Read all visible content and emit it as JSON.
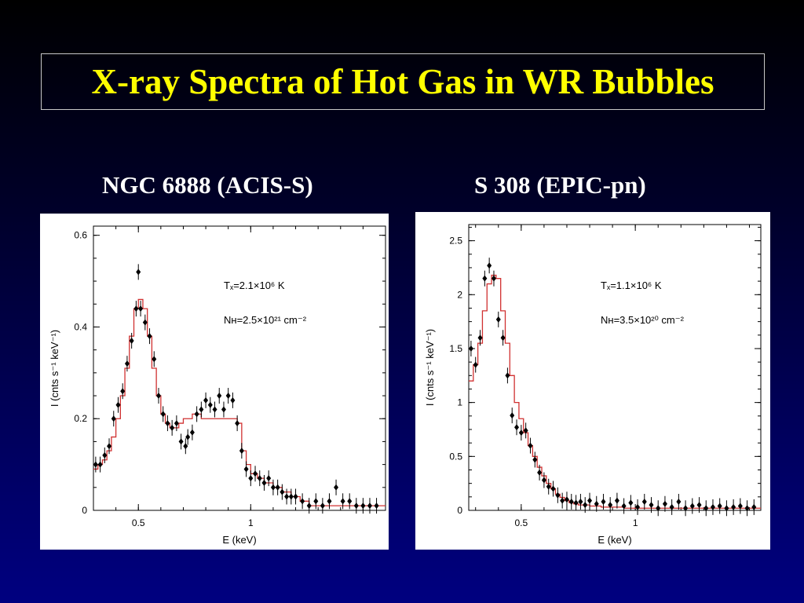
{
  "slide": {
    "title": "X-ray Spectra of Hot Gas in WR Bubbles",
    "colors": {
      "background_top": "#000000",
      "background_bottom": "#000080",
      "title": "#ffff00",
      "subtitle": "#ffffff",
      "model_line": "#d03030",
      "data_points": "#000000"
    }
  },
  "chart_data": [
    {
      "type": "line",
      "subtitle": "NGC 6888  (ACIS-S)",
      "xlabel": "E (keV)",
      "ylabel": "I (cnts s⁻¹ keV⁻¹)",
      "xlim": [
        0.3,
        1.6
      ],
      "ylim": [
        0,
        0.62
      ],
      "x_ticks": [
        "0.5",
        "1"
      ],
      "y_ticks": [
        "0",
        "0.2",
        "0.4",
        "0.6"
      ],
      "annotations": [
        "Tₓ=2.1×10⁶ K",
        "Nʜ=2.5×10²¹ cm⁻²"
      ],
      "series": [
        {
          "kind": "data",
          "x": [
            0.31,
            0.33,
            0.35,
            0.37,
            0.39,
            0.41,
            0.43,
            0.45,
            0.47,
            0.49,
            0.5,
            0.51,
            0.53,
            0.55,
            0.57,
            0.59,
            0.61,
            0.63,
            0.65,
            0.67,
            0.69,
            0.71,
            0.72,
            0.74,
            0.76,
            0.78,
            0.8,
            0.82,
            0.84,
            0.86,
            0.88,
            0.9,
            0.92,
            0.94,
            0.96,
            0.98,
            1.0,
            1.02,
            1.04,
            1.06,
            1.08,
            1.1,
            1.12,
            1.14,
            1.16,
            1.18,
            1.2,
            1.23,
            1.26,
            1.29,
            1.32,
            1.35,
            1.38,
            1.41,
            1.44,
            1.47,
            1.5,
            1.53,
            1.56
          ],
          "y": [
            0.1,
            0.1,
            0.12,
            0.14,
            0.2,
            0.23,
            0.26,
            0.32,
            0.37,
            0.44,
            0.52,
            0.44,
            0.41,
            0.38,
            0.33,
            0.25,
            0.21,
            0.19,
            0.18,
            0.19,
            0.15,
            0.14,
            0.16,
            0.17,
            0.21,
            0.22,
            0.24,
            0.23,
            0.22,
            0.25,
            0.22,
            0.25,
            0.24,
            0.19,
            0.13,
            0.09,
            0.07,
            0.08,
            0.07,
            0.06,
            0.07,
            0.05,
            0.05,
            0.04,
            0.03,
            0.03,
            0.03,
            0.02,
            0.01,
            0.02,
            0.01,
            0.02,
            0.05,
            0.02,
            0.02,
            0.01,
            0.01,
            0.01,
            0.01
          ]
        },
        {
          "kind": "model",
          "x": [
            0.3,
            0.32,
            0.34,
            0.36,
            0.38,
            0.4,
            0.42,
            0.44,
            0.46,
            0.48,
            0.5,
            0.52,
            0.54,
            0.56,
            0.58,
            0.6,
            0.62,
            0.64,
            0.66,
            0.68,
            0.7,
            0.72,
            0.74,
            0.76,
            0.78,
            0.8,
            0.82,
            0.84,
            0.86,
            0.88,
            0.9,
            0.92,
            0.94,
            0.96,
            0.98,
            1.0,
            1.03,
            1.06,
            1.1,
            1.14,
            1.18,
            1.22,
            1.26,
            1.3,
            1.35,
            1.4,
            1.45,
            1.5,
            1.55,
            1.6
          ],
          "y": [
            0.09,
            0.1,
            0.11,
            0.13,
            0.16,
            0.2,
            0.25,
            0.31,
            0.38,
            0.44,
            0.46,
            0.44,
            0.38,
            0.31,
            0.25,
            0.21,
            0.19,
            0.18,
            0.18,
            0.19,
            0.2,
            0.2,
            0.21,
            0.21,
            0.2,
            0.2,
            0.2,
            0.2,
            0.2,
            0.2,
            0.2,
            0.2,
            0.19,
            0.13,
            0.1,
            0.08,
            0.07,
            0.06,
            0.05,
            0.04,
            0.03,
            0.02,
            0.01,
            0.01,
            0.01,
            0.01,
            0.01,
            0.01,
            0.01,
            0.01
          ]
        }
      ]
    },
    {
      "type": "line",
      "subtitle": "S 308  (EPIC-pn)",
      "xlabel": "E (keV)",
      "ylabel": "I (cnts s⁻¹ keV⁻¹)",
      "xlim": [
        0.27,
        1.55
      ],
      "ylim": [
        0,
        2.65
      ],
      "x_ticks": [
        "0.5",
        "1"
      ],
      "y_ticks": [
        "0",
        "0.5",
        "1",
        "1.5",
        "2",
        "2.5"
      ],
      "annotations": [
        "Tₓ=1.1×10⁶ K",
        "Nʜ=3.5×10²⁰ cm⁻²"
      ],
      "series": [
        {
          "kind": "data",
          "x": [
            0.28,
            0.3,
            0.32,
            0.34,
            0.36,
            0.38,
            0.4,
            0.42,
            0.44,
            0.46,
            0.48,
            0.5,
            0.52,
            0.54,
            0.56,
            0.58,
            0.6,
            0.62,
            0.64,
            0.66,
            0.68,
            0.7,
            0.72,
            0.74,
            0.76,
            0.78,
            0.8,
            0.83,
            0.86,
            0.89,
            0.92,
            0.95,
            0.98,
            1.01,
            1.04,
            1.07,
            1.1,
            1.13,
            1.16,
            1.19,
            1.22,
            1.25,
            1.28,
            1.31,
            1.34,
            1.37,
            1.4,
            1.43,
            1.46,
            1.49,
            1.52
          ],
          "y": [
            1.5,
            1.35,
            1.6,
            2.15,
            2.27,
            2.15,
            1.77,
            1.6,
            1.25,
            0.88,
            0.77,
            0.72,
            0.74,
            0.6,
            0.47,
            0.35,
            0.28,
            0.22,
            0.2,
            0.14,
            0.09,
            0.1,
            0.08,
            0.07,
            0.08,
            0.05,
            0.09,
            0.06,
            0.08,
            0.05,
            0.09,
            0.04,
            0.07,
            0.03,
            0.08,
            0.05,
            0.02,
            0.06,
            0.03,
            0.08,
            0.02,
            0.04,
            0.05,
            0.02,
            0.03,
            0.04,
            0.02,
            0.03,
            0.04,
            0.02,
            0.03
          ]
        },
        {
          "kind": "model",
          "x": [
            0.27,
            0.29,
            0.31,
            0.33,
            0.35,
            0.37,
            0.39,
            0.41,
            0.43,
            0.45,
            0.47,
            0.49,
            0.51,
            0.53,
            0.55,
            0.57,
            0.59,
            0.61,
            0.63,
            0.65,
            0.67,
            0.69,
            0.71,
            0.73,
            0.75,
            0.8,
            0.85,
            0.9,
            0.95,
            1.0,
            1.1,
            1.2,
            1.3,
            1.4,
            1.5,
            1.55
          ],
          "y": [
            1.2,
            1.35,
            1.55,
            1.85,
            2.1,
            2.18,
            2.15,
            1.85,
            1.55,
            1.25,
            1.0,
            0.85,
            0.72,
            0.6,
            0.5,
            0.4,
            0.32,
            0.25,
            0.2,
            0.15,
            0.12,
            0.09,
            0.07,
            0.06,
            0.05,
            0.04,
            0.03,
            0.03,
            0.02,
            0.02,
            0.02,
            0.02,
            0.02,
            0.02,
            0.02,
            0.02
          ]
        }
      ]
    }
  ]
}
